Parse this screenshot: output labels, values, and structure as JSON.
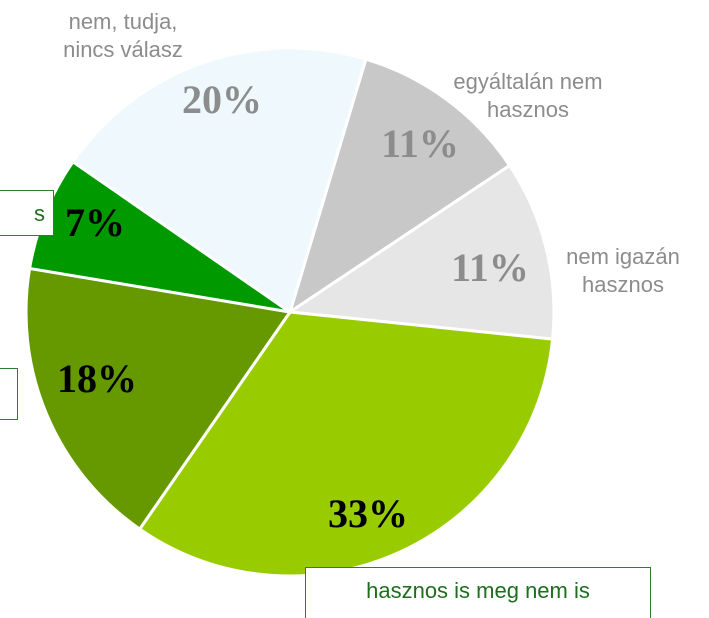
{
  "chart_data": {
    "type": "pie",
    "categories": [
      "egyáltalán nem hasznos",
      "nem igazán hasznos",
      "hasznos is meg nem is",
      null,
      "s",
      "nem, tudja, nincs válasz"
    ],
    "values": [
      11,
      11,
      33,
      18,
      7,
      20
    ],
    "value_labels": [
      "11%",
      "11%",
      "33%",
      "18%",
      "7%",
      "20%"
    ],
    "colors": [
      "#c8c8c8",
      "#e6e6e6",
      "#99cc00",
      "#669900",
      "#009900",
      "#eef8fd"
    ]
  }
}
